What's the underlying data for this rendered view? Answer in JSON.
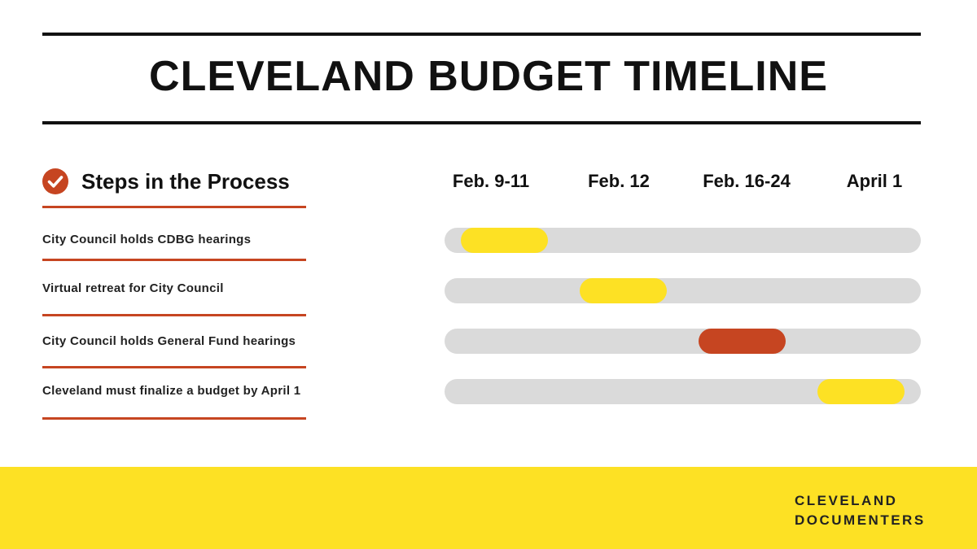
{
  "title": "CLEVELAND BUDGET TIMELINE",
  "steps_header": {
    "title": "Steps in the Process",
    "icon": "check-circle-icon",
    "icon_color": "#c64521"
  },
  "dates": [
    "Feb. 9-11",
    "Feb. 12",
    "Feb. 16-24",
    "April 1"
  ],
  "steps": [
    {
      "label": "City Council holds CDBG hearings",
      "period_index": 0,
      "color": "#fde124"
    },
    {
      "label": "Virtual retreat for City Council",
      "period_index": 1,
      "color": "#fde124"
    },
    {
      "label": "City Council holds General Fund hearings",
      "period_index": 2,
      "color": "#c64521"
    },
    {
      "label": "Cleveland must finalize a budget by April 1",
      "period_index": 3,
      "color": "#fde124"
    }
  ],
  "colors": {
    "accent_orange": "#c64521",
    "accent_yellow": "#fde124",
    "track_gray": "#dadada",
    "text_dark": "#111111"
  },
  "footer": {
    "line1": "CLEVELAND",
    "line2": "DOCUMENTERS"
  }
}
